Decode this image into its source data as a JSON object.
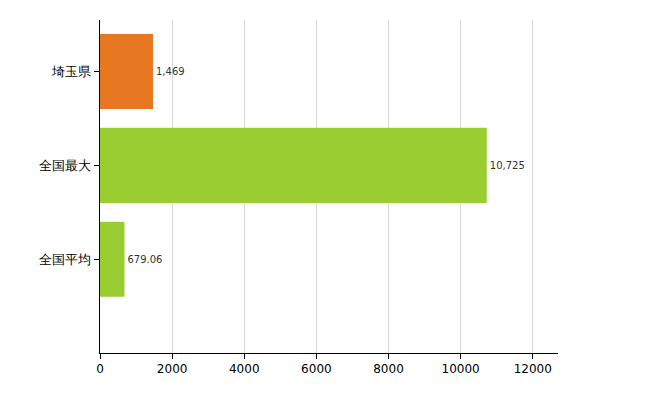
{
  "chart_data": {
    "type": "bar",
    "orientation": "horizontal",
    "categories": [
      "埼玉県",
      "全国最大",
      "全国平均"
    ],
    "values": [
      1469,
      10725,
      679.06
    ],
    "value_labels": [
      "1,469",
      "10,725",
      "679.06"
    ],
    "colors": [
      "#e87722",
      "#9acd32",
      "#9acd32"
    ],
    "data_labels": true,
    "xlim": [
      0,
      12700
    ],
    "xticks": [
      0,
      2000,
      4000,
      6000,
      8000,
      10000,
      12000
    ],
    "grid": true
  }
}
